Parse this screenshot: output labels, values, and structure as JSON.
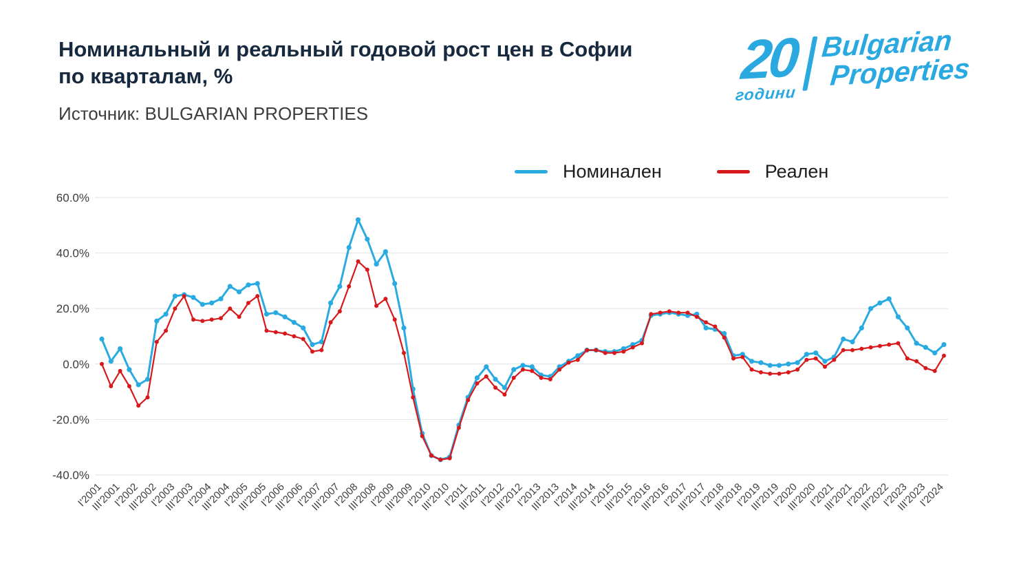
{
  "header": {
    "title_line1": "Номинальный и реальный годовой рост цен в Софии",
    "title_line2": "по кварталам, %",
    "source": "Источник: BULGARIAN PROPERTIES"
  },
  "logo": {
    "number": "20",
    "years_label": "години",
    "brand_line1": "Bulgarian",
    "brand_line2": "Properties",
    "color": "#2aa9e1"
  },
  "legend": {
    "items": [
      {
        "label": "Номинален",
        "color": "#29abe2"
      },
      {
        "label": "Реален",
        "color": "#d7191c"
      }
    ]
  },
  "chart_data": {
    "type": "line",
    "title": "Номинальный и реальный годовой рост цен в Софии по кварталам, %",
    "xlabel": "",
    "ylabel": "",
    "ylim": [
      -40,
      60
    ],
    "y_ticks": [
      60,
      40,
      20,
      0,
      -20,
      -40
    ],
    "y_tick_labels": [
      "60.0%",
      "40.0%",
      "20.0%",
      "0.0%",
      "-20.0%",
      "-40.0%"
    ],
    "x_tick_step": 2,
    "grid": "horizontal",
    "legend_position": "top",
    "x": [
      "I'2001",
      "II'2001",
      "III'2001",
      "IV'2001",
      "I'2002",
      "II'2002",
      "III'2002",
      "IV'2002",
      "I'2003",
      "II'2003",
      "III'2003",
      "IV'2003",
      "I'2004",
      "II'2004",
      "III'2004",
      "IV'2004",
      "I'2005",
      "II'2005",
      "III'2005",
      "IV'2005",
      "I'2006",
      "II'2006",
      "III'2006",
      "IV'2006",
      "I'2007",
      "II'2007",
      "III'2007",
      "IV'2007",
      "I'2008",
      "II'2008",
      "III'2008",
      "IV'2008",
      "I'2009",
      "II'2009",
      "III'2009",
      "IV'2009",
      "I'2010",
      "II'2010",
      "III'2010",
      "IV'2010",
      "I'2011",
      "II'2011",
      "III'2011",
      "IV'2011",
      "I'2012",
      "II'2012",
      "III'2012",
      "IV'2012",
      "I'2013",
      "II'2013",
      "III'2013",
      "IV'2013",
      "I'2014",
      "II'2014",
      "III'2014",
      "IV'2014",
      "I'2015",
      "II'2015",
      "III'2015",
      "IV'2015",
      "I'2016",
      "II'2016",
      "III'2016",
      "IV'2016",
      "I'2017",
      "II'2017",
      "III'2017",
      "IV'2017",
      "I'2018",
      "II'2018",
      "III'2018",
      "IV'2018",
      "I'2019",
      "II'2019",
      "III'2019",
      "IV'2019",
      "I'2020",
      "II'2020",
      "III'2020",
      "IV'2020",
      "I'2021",
      "II'2021",
      "III'2021",
      "IV'2021",
      "I'2022",
      "II'2022",
      "III'2022",
      "IV'2022",
      "I'2023",
      "II'2023",
      "III'2023",
      "IV'2023",
      "I'2024"
    ],
    "series": [
      {
        "name": "Номинален",
        "color": "#29abe2",
        "values": [
          9,
          1,
          5.5,
          -2,
          -7.5,
          -5.5,
          15.5,
          18,
          24.5,
          25,
          24,
          21.5,
          22,
          23.5,
          28,
          26,
          28.5,
          29,
          18,
          18.5,
          17,
          15,
          13,
          7,
          8,
          22,
          28,
          42,
          52,
          45,
          36,
          40.5,
          29,
          13,
          -9,
          -25,
          -33,
          -34.5,
          -33.5,
          -22,
          -12,
          -5,
          -1,
          -5.5,
          -8.5,
          -2,
          -0.5,
          -1,
          -4,
          -4.5,
          -1,
          1,
          3,
          5,
          5,
          4.5,
          4.5,
          5.5,
          7,
          8.5,
          17.5,
          18,
          18.5,
          18,
          17.5,
          18,
          13,
          12.5,
          11,
          3,
          3.5,
          1,
          0.5,
          -0.5,
          -0.5,
          0,
          0.5,
          3.5,
          4,
          1,
          2.5,
          9,
          8,
          13,
          20,
          22,
          23.5,
          17,
          13,
          7.5,
          6,
          4,
          7
        ]
      },
      {
        "name": "Реален",
        "color": "#d7191c",
        "values": [
          0,
          -8,
          -2.5,
          -8,
          -15,
          -12,
          8,
          12,
          20,
          24.5,
          16,
          15.5,
          16,
          16.5,
          20,
          17,
          22,
          24.5,
          12,
          11.5,
          11,
          10,
          9,
          4.5,
          5,
          15,
          19,
          28,
          37,
          34,
          21,
          23.5,
          16,
          4,
          -12,
          -26,
          -33,
          -34.5,
          -34,
          -23,
          -13,
          -7,
          -4.5,
          -8.5,
          -11,
          -5,
          -2,
          -2.5,
          -5,
          -5.5,
          -2,
          0.5,
          1.5,
          5,
          5,
          4,
          4,
          4.5,
          6,
          7.5,
          18,
          18.5,
          19,
          18.5,
          18.5,
          17,
          15,
          13.5,
          9.5,
          2,
          2.5,
          -2,
          -3,
          -3.5,
          -3.5,
          -3,
          -2,
          1.5,
          2,
          -1,
          1.5,
          5,
          5,
          5.5,
          6,
          6.5,
          7,
          7.5,
          2,
          1,
          -1.5,
          -2.5,
          3
        ]
      }
    ]
  }
}
